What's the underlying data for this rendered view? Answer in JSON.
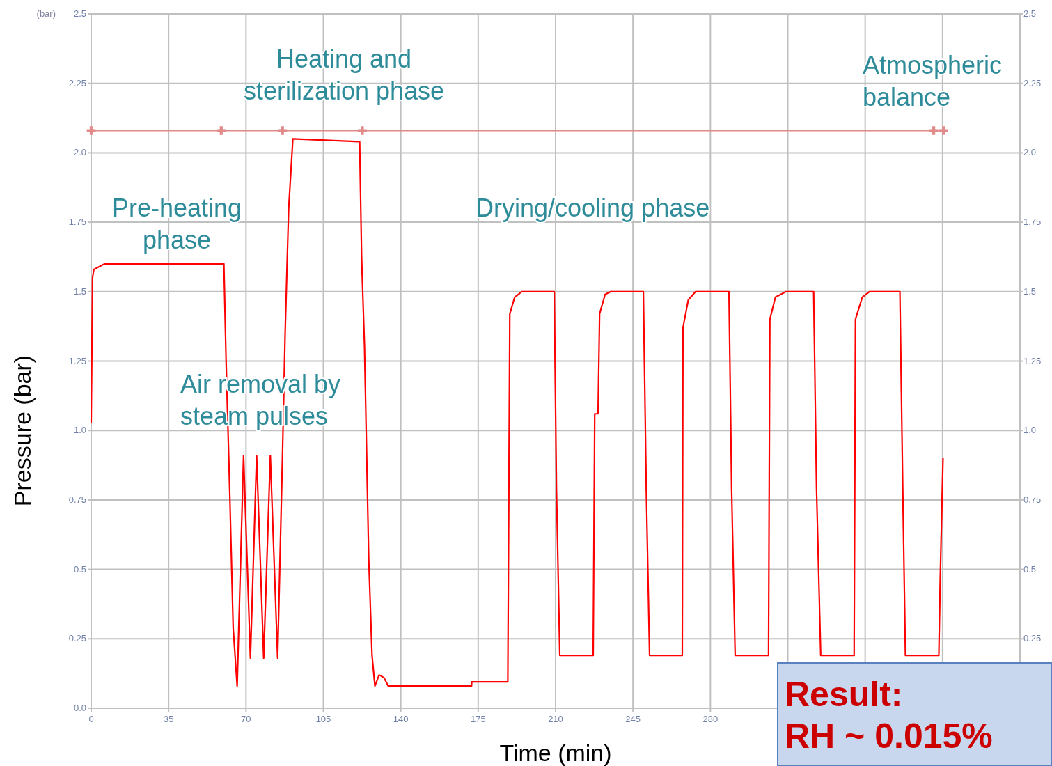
{
  "chart_data": {
    "type": "line",
    "xlabel": "Time (min)",
    "ylabel": "Pressure (bar)",
    "xlim": [
      0,
      420
    ],
    "xticks": [
      0,
      35,
      70,
      105,
      140,
      175,
      210,
      245,
      280,
      {
        "value": 315,
        "label": null
      },
      {
        "value": 350,
        "label": null
      },
      {
        "value": 385,
        "label": null
      },
      {
        "value": 420,
        "label": null
      }
    ],
    "ylim": [
      0,
      2.5
    ],
    "yticks": [
      {
        "value": 0,
        "label": "0.0"
      },
      0.25,
      0.5,
      0.75,
      {
        "value": 1,
        "label": "1.0"
      },
      1.25,
      1.5,
      1.75,
      {
        "value": 2,
        "label": "2.0"
      },
      2.25,
      2.5
    ],
    "y2lim": [
      0,
      2.5
    ],
    "y2ticks": [
      0.25,
      0.5,
      0.75,
      {
        "value": 1,
        "label": "1.0"
      },
      1.25,
      1.5,
      1.75,
      {
        "value": 2,
        "label": "2.0"
      },
      2.25,
      2.5
    ],
    "grid": true,
    "marker": "none",
    "line_style": "solid",
    "series": [
      {
        "color": "#ff0000",
        "x": [
          0,
          0.6,
          1.2,
          6,
          60,
          61,
          62.6,
          64.2,
          66,
          68.9,
          72,
          74.8,
          78,
          81,
          84.3,
          86.5,
          87.7,
          89.3,
          91.2,
          121.4,
          122.3,
          123.6,
          125.5,
          127,
          128.3,
          130.2,
          132.4,
          134.3,
          172,
          172.1,
          188.4,
          189.3,
          191.5,
          194.7,
          209.4,
          210.4,
          211.9,
          227,
          227.7,
          229.2,
          229.9,
          232.4,
          235,
          249.7,
          251,
          252.5,
          267.3,
          267.6,
          270,
          273.3,
          288.4,
          289.6,
          291.2,
          306.3,
          306.9,
          309.4,
          314.2,
          326.7,
          328,
          329.9,
          345,
          345.6,
          348.7,
          351.9,
          365.7,
          367,
          368.2,
          383.3,
          384,
          385.2
        ],
        "values": [
          1.03,
          1.55,
          1.58,
          1.6,
          1.6,
          1.25,
          0.79,
          0.29,
          0.08,
          0.91,
          0.18,
          0.91,
          0.18,
          0.91,
          0.18,
          0.91,
          1.35,
          1.8,
          2.05,
          2.04,
          1.62,
          1.3,
          0.54,
          0.19,
          0.08,
          0.12,
          0.11,
          0.08,
          0.08,
          0.095,
          0.095,
          1.42,
          1.48,
          1.5,
          1.5,
          0.79,
          0.19,
          0.19,
          1.06,
          1.06,
          1.42,
          1.49,
          1.5,
          1.5,
          0.79,
          0.19,
          0.19,
          1.37,
          1.47,
          1.5,
          1.5,
          0.79,
          0.19,
          0.19,
          1.4,
          1.48,
          1.5,
          1.5,
          0.79,
          0.19,
          0.19,
          1.4,
          1.48,
          1.5,
          1.5,
          0.79,
          0.19,
          0.19,
          0.49,
          0.9
        ]
      },
      {
        "color": "#e08a8a",
        "marker": "cross",
        "x": [
          0,
          58.8,
          86.5,
          122.6,
          381,
          385.5
        ],
        "values": [
          2.08,
          2.08,
          2.08,
          2.08,
          2.08,
          2.08
        ]
      }
    ],
    "annotations": [
      "Heating and\nsterilization phase",
      "Atmospheric\nbalance",
      "Pre-heating\nphase",
      "Drying/cooling phase",
      "Air removal by\nsteam pulses",
      "(bar)",
      "Result:\nRH ~ 0.015%"
    ]
  }
}
